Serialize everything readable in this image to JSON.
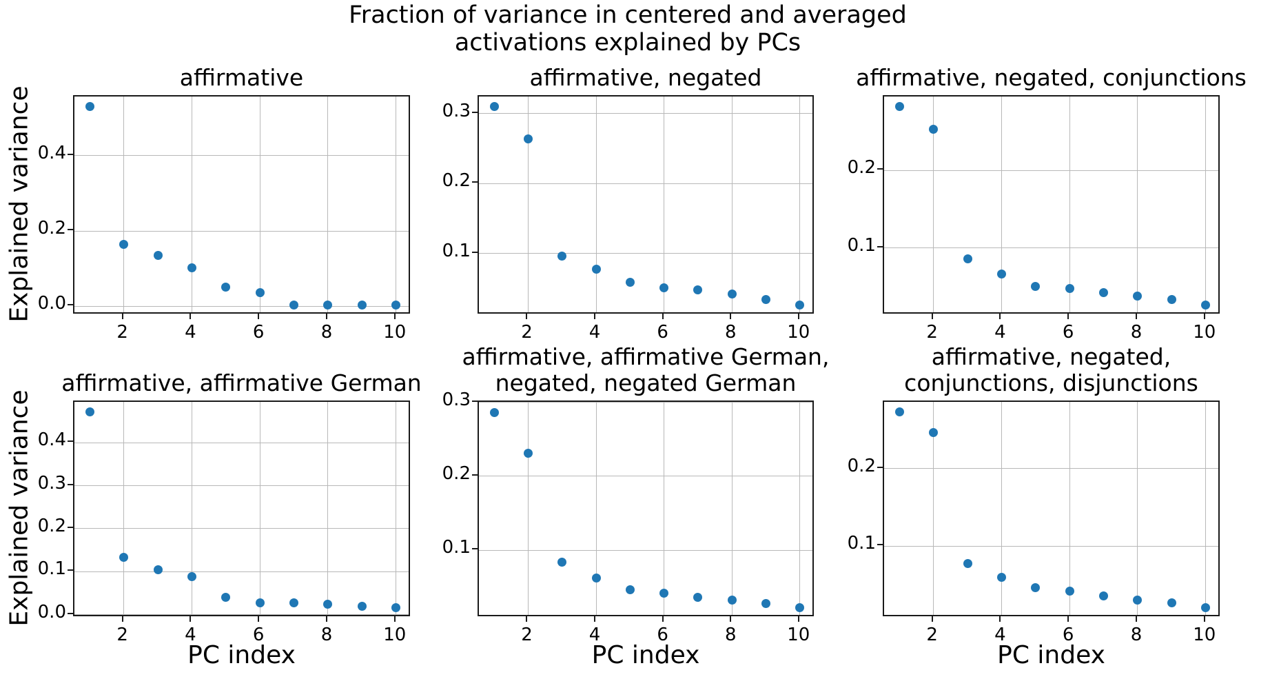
{
  "figure": {
    "title_line1": "Fraction of variance in centered and averaged",
    "title_line2": "activations explained by PCs",
    "ylabel": "Explained variance",
    "xlabel": "PC index"
  },
  "style": {
    "dot_color": "#1f77b4",
    "grid_color": "#b8b8b8",
    "spine_color": "#1a1a1a",
    "text_color": "#000000"
  },
  "chart_data": [
    {
      "type": "scatter",
      "title_lines": [
        "affirmative"
      ],
      "x": [
        1,
        2,
        3,
        4,
        5,
        6,
        7,
        8,
        9,
        10
      ],
      "values": [
        0.531,
        0.164,
        0.135,
        0.102,
        0.051,
        0.037,
        0.003,
        0.003,
        0.003,
        0.003
      ],
      "xlabel": "",
      "ylabel": "Explained variance",
      "xlim": [
        0.55,
        10.45
      ],
      "ylim": [
        -0.0234,
        0.5574
      ],
      "xticks": [
        2,
        4,
        6,
        8,
        10
      ],
      "xtick_labels": [
        "2",
        "4",
        "6",
        "8",
        "10"
      ],
      "yticks": [
        0.0,
        0.2,
        0.4
      ],
      "ytick_labels": [
        "0.0",
        "0.2",
        "0.4"
      ],
      "grid": true
    },
    {
      "type": "scatter",
      "title_lines": [
        "affirmative, negated"
      ],
      "x": [
        1,
        2,
        3,
        4,
        5,
        6,
        7,
        8,
        9,
        10
      ],
      "values": [
        0.31,
        0.264,
        0.096,
        0.077,
        0.059,
        0.051,
        0.048,
        0.042,
        0.034,
        0.026
      ],
      "xlabel": "",
      "ylabel": "",
      "xlim": [
        0.55,
        10.45
      ],
      "ylim": [
        0.0118,
        0.3242
      ],
      "xticks": [
        2,
        4,
        6,
        8,
        10
      ],
      "xtick_labels": [
        "2",
        "4",
        "6",
        "8",
        "10"
      ],
      "yticks": [
        0.1,
        0.2,
        0.3
      ],
      "ytick_labels": [
        "0.1",
        "0.2",
        "0.3"
      ],
      "grid": true
    },
    {
      "type": "scatter",
      "title_lines": [
        "affirmative, negated, conjunctions"
      ],
      "x": [
        1,
        2,
        3,
        4,
        5,
        6,
        7,
        8,
        9,
        10
      ],
      "values": [
        0.282,
        0.253,
        0.086,
        0.067,
        0.051,
        0.048,
        0.043,
        0.038,
        0.034,
        0.027
      ],
      "xlabel": "",
      "ylabel": "",
      "xlim": [
        0.55,
        10.45
      ],
      "ylim": [
        0.014,
        0.2948
      ],
      "xticks": [
        2,
        4,
        6,
        8,
        10
      ],
      "xtick_labels": [
        "2",
        "4",
        "6",
        "8",
        "10"
      ],
      "yticks": [
        0.1,
        0.2
      ],
      "ytick_labels": [
        "0.1",
        "0.2"
      ],
      "grid": true
    },
    {
      "type": "scatter",
      "title_lines": [
        "affirmative, affirmative German"
      ],
      "x": [
        1,
        2,
        3,
        4,
        5,
        6,
        7,
        8,
        9,
        10
      ],
      "values": [
        0.472,
        0.134,
        0.105,
        0.088,
        0.041,
        0.028,
        0.027,
        0.025,
        0.02,
        0.016
      ],
      "xlabel": "PC index",
      "ylabel": "Explained variance",
      "xlim": [
        0.55,
        10.45
      ],
      "ylim": [
        -0.0068,
        0.4948
      ],
      "xticks": [
        2,
        4,
        6,
        8,
        10
      ],
      "xtick_labels": [
        "2",
        "4",
        "6",
        "8",
        "10"
      ],
      "yticks": [
        0.0,
        0.1,
        0.2,
        0.3,
        0.4
      ],
      "ytick_labels": [
        "0.0",
        "0.1",
        "0.2",
        "0.3",
        "0.4"
      ],
      "grid": true
    },
    {
      "type": "scatter",
      "title_lines": [
        "affirmative, affirmative German,",
        "negated, negated German"
      ],
      "x": [
        1,
        2,
        3,
        4,
        5,
        6,
        7,
        8,
        9,
        10
      ],
      "values": [
        0.286,
        0.231,
        0.084,
        0.062,
        0.047,
        0.042,
        0.036,
        0.033,
        0.028,
        0.022
      ],
      "xlabel": "PC index",
      "ylabel": "",
      "xlim": [
        0.55,
        10.45
      ],
      "ylim": [
        0.0088,
        0.3005
      ],
      "xticks": [
        2,
        4,
        6,
        8,
        10
      ],
      "xtick_labels": [
        "2",
        "4",
        "6",
        "8",
        "10"
      ],
      "yticks": [
        0.1,
        0.2,
        0.3
      ],
      "ytick_labels": [
        "0.1",
        "0.2",
        "0.3"
      ],
      "grid": true
    },
    {
      "type": "scatter",
      "title_lines": [
        "affirmative, negated,",
        "conjunctions, disjunctions"
      ],
      "x": [
        1,
        2,
        3,
        4,
        5,
        6,
        7,
        8,
        9,
        10
      ],
      "values": [
        0.273,
        0.246,
        0.078,
        0.06,
        0.047,
        0.042,
        0.036,
        0.031,
        0.027,
        0.021
      ],
      "xlabel": "PC index",
      "ylabel": "",
      "xlim": [
        0.55,
        10.45
      ],
      "ylim": [
        0.008,
        0.2856
      ],
      "xticks": [
        2,
        4,
        6,
        8,
        10
      ],
      "xtick_labels": [
        "2",
        "4",
        "6",
        "8",
        "10"
      ],
      "yticks": [
        0.1,
        0.2
      ],
      "ytick_labels": [
        "0.1",
        "0.2"
      ],
      "grid": true
    }
  ]
}
